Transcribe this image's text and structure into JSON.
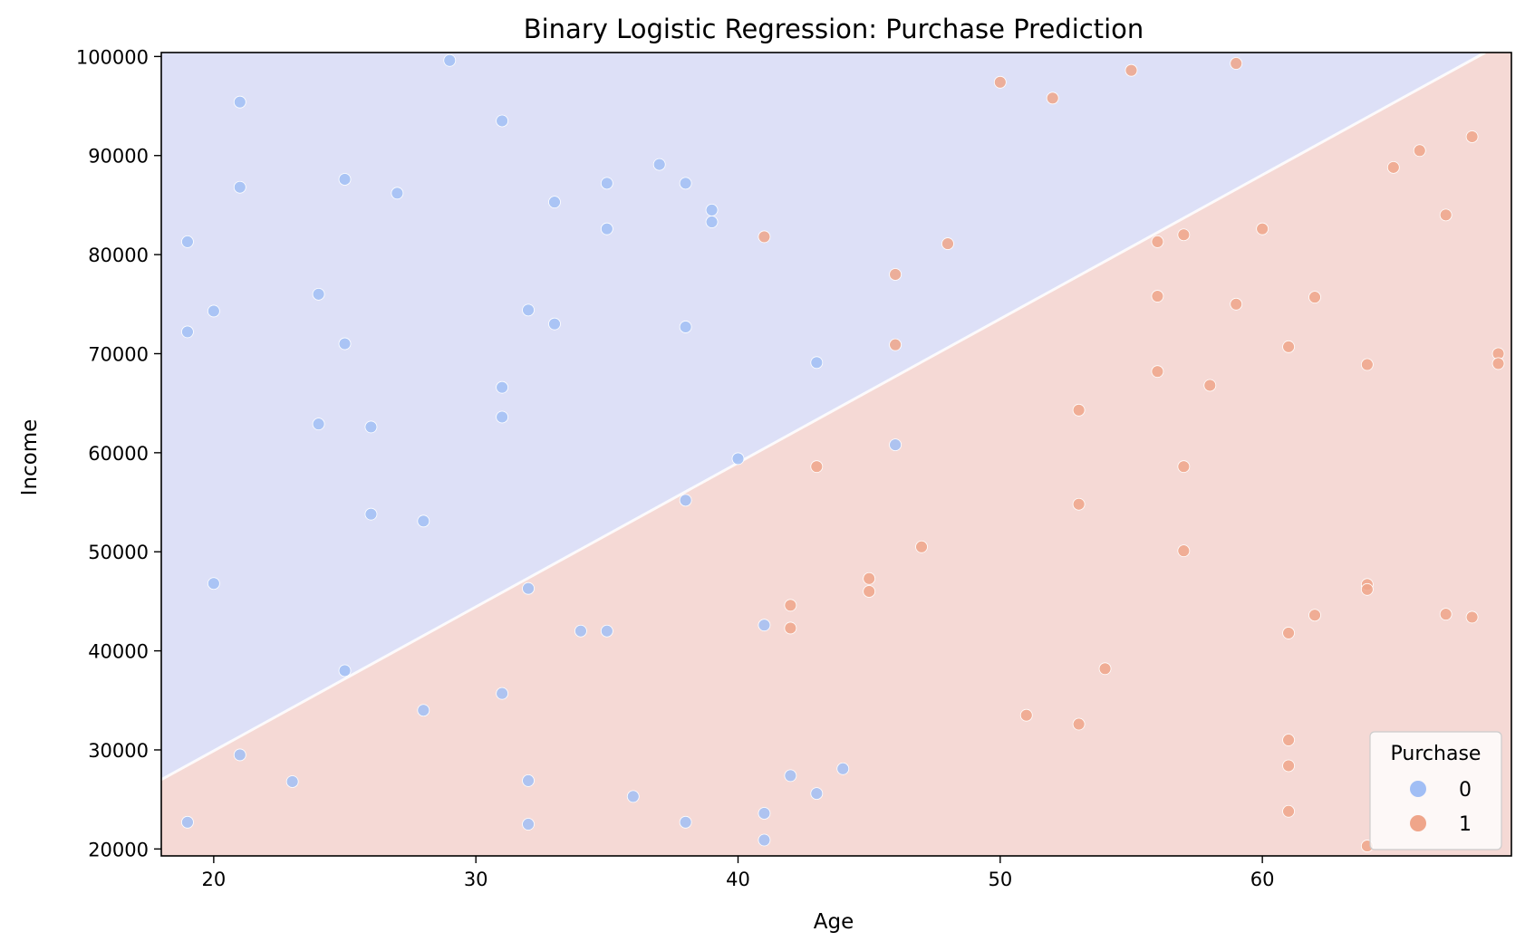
{
  "chart_data": {
    "type": "scatter",
    "title": "Binary Logistic Regression: Purchase Prediction",
    "xlabel": "Age",
    "ylabel": "Income",
    "xlim": [
      18,
      69.5
    ],
    "ylim": [
      19300,
      100400
    ],
    "x_ticks": [
      20,
      30,
      40,
      50,
      60
    ],
    "y_ticks": [
      20000,
      30000,
      40000,
      50000,
      60000,
      70000,
      80000,
      90000,
      100000
    ],
    "grid": false,
    "legend": {
      "title": "Purchase",
      "placement": "bottom-right",
      "entries": [
        {
          "label": "0",
          "color": "#a1bef5"
        },
        {
          "label": "1",
          "color": "#efa58a"
        }
      ]
    },
    "decision_boundary": {
      "class0_region_color": "#dde0f7",
      "class1_region_color": "#f5d9d5",
      "line": [
        [
          18,
          27000
        ],
        [
          68.5,
          100400
        ]
      ]
    },
    "series": [
      {
        "name": "0",
        "color": "#a1bef5",
        "points": [
          [
            19,
            81300
          ],
          [
            19,
            72200
          ],
          [
            20,
            74300
          ],
          [
            20,
            46800
          ],
          [
            21,
            95400
          ],
          [
            21,
            86800
          ],
          [
            24,
            76000
          ],
          [
            24,
            62900
          ],
          [
            25,
            87600
          ],
          [
            25,
            71000
          ],
          [
            25,
            38000
          ],
          [
            26,
            62600
          ],
          [
            26,
            53800
          ],
          [
            27,
            86200
          ],
          [
            28,
            53100
          ],
          [
            29,
            99600
          ],
          [
            31,
            93500
          ],
          [
            31,
            66600
          ],
          [
            31,
            63600
          ],
          [
            32,
            74400
          ],
          [
            33,
            85300
          ],
          [
            33,
            73000
          ],
          [
            35,
            87200
          ],
          [
            35,
            82600
          ],
          [
            37,
            89100
          ],
          [
            38,
            87200
          ],
          [
            38,
            72700
          ],
          [
            39,
            84500
          ],
          [
            39,
            83300
          ],
          [
            40,
            59400
          ],
          [
            43,
            69100
          ],
          [
            19,
            22700
          ],
          [
            21,
            29500
          ],
          [
            23,
            26800
          ],
          [
            28,
            34000
          ],
          [
            31,
            35700
          ],
          [
            32,
            46300
          ],
          [
            32,
            26900
          ],
          [
            32,
            22500
          ],
          [
            34,
            42000
          ],
          [
            35,
            42000
          ],
          [
            36,
            25300
          ],
          [
            38,
            55200
          ],
          [
            38,
            22700
          ],
          [
            41,
            42600
          ],
          [
            41,
            23600
          ],
          [
            41,
            20900
          ],
          [
            42,
            27400
          ],
          [
            43,
            25600
          ],
          [
            44,
            28100
          ],
          [
            46,
            60800
          ]
        ]
      },
      {
        "name": "1",
        "color": "#efa58a",
        "points": [
          [
            41,
            81800
          ],
          [
            46,
            78000
          ],
          [
            46,
            70900
          ],
          [
            48,
            81100
          ],
          [
            50,
            97400
          ],
          [
            52,
            95800
          ],
          [
            55,
            98600
          ],
          [
            59,
            99300
          ],
          [
            42,
            44600
          ],
          [
            42,
            42300
          ],
          [
            43,
            58600
          ],
          [
            45,
            47300
          ],
          [
            45,
            46000
          ],
          [
            47,
            50500
          ],
          [
            51,
            33500
          ],
          [
            53,
            64300
          ],
          [
            53,
            54800
          ],
          [
            53,
            32600
          ],
          [
            54,
            38200
          ],
          [
            56,
            81300
          ],
          [
            56,
            75800
          ],
          [
            56,
            68200
          ],
          [
            57,
            82000
          ],
          [
            57,
            58600
          ],
          [
            57,
            50100
          ],
          [
            58,
            66800
          ],
          [
            59,
            75000
          ],
          [
            60,
            82600
          ],
          [
            61,
            70700
          ],
          [
            61,
            41800
          ],
          [
            61,
            31000
          ],
          [
            61,
            28400
          ],
          [
            61,
            23800
          ],
          [
            62,
            75700
          ],
          [
            62,
            43600
          ],
          [
            64,
            68900
          ],
          [
            64,
            46700
          ],
          [
            64,
            46200
          ],
          [
            64,
            20300
          ],
          [
            65,
            88800
          ],
          [
            66,
            90500
          ],
          [
            67,
            84000
          ],
          [
            67,
            43700
          ],
          [
            68,
            91900
          ],
          [
            68,
            43400
          ],
          [
            69,
            70000
          ],
          [
            69,
            69000
          ]
        ]
      }
    ]
  }
}
